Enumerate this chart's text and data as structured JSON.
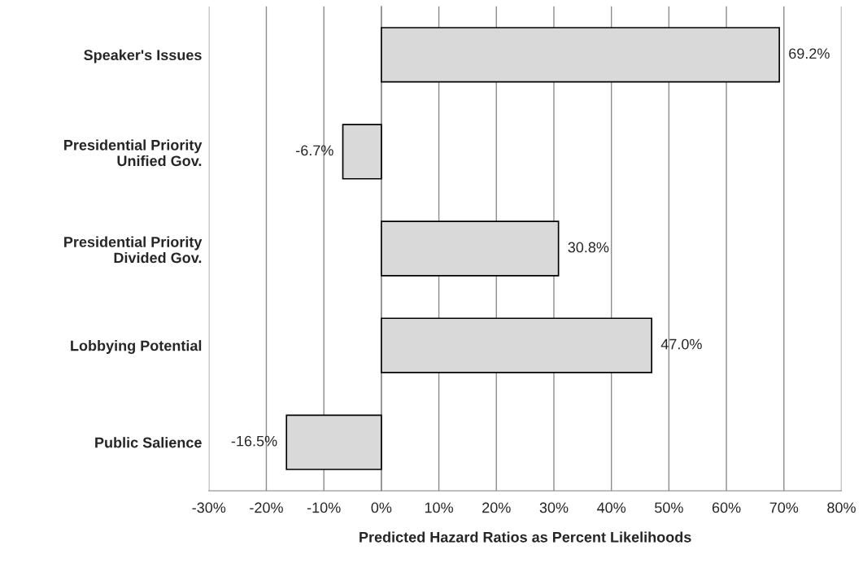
{
  "chart_data": {
    "type": "bar",
    "orientation": "horizontal",
    "xlabel": "Predicted Hazard Ratios as Percent Likelihoods",
    "categories": [
      "Speaker's Issues",
      "Presidential Priority\nUnified Gov.",
      "Presidential Priority\nDivided Gov.",
      "Lobbying Potential",
      "Public Salience"
    ],
    "values": [
      69.2,
      -6.7,
      30.8,
      47.0,
      -16.5
    ],
    "value_labels": [
      "69.2%",
      "-6.7%",
      "30.8%",
      "47.0%",
      "-16.5%"
    ],
    "color": "#d9d9d9",
    "xlim": [
      -30,
      80
    ],
    "xticks": [
      {
        "value": -30,
        "label": "-30%"
      },
      {
        "value": -20,
        "label": "-20%"
      },
      {
        "value": -10,
        "label": "-10%"
      },
      {
        "value": 0,
        "label": "0%"
      },
      {
        "value": 10,
        "label": "10%"
      },
      {
        "value": 20,
        "label": "20%"
      },
      {
        "value": 30,
        "label": "30%"
      },
      {
        "value": 40,
        "label": "40%"
      },
      {
        "value": 50,
        "label": "50%"
      },
      {
        "value": 60,
        "label": "60%"
      },
      {
        "value": 70,
        "label": "70%"
      },
      {
        "value": 80,
        "label": "80%"
      }
    ],
    "grid": "x",
    "legend": false
  }
}
